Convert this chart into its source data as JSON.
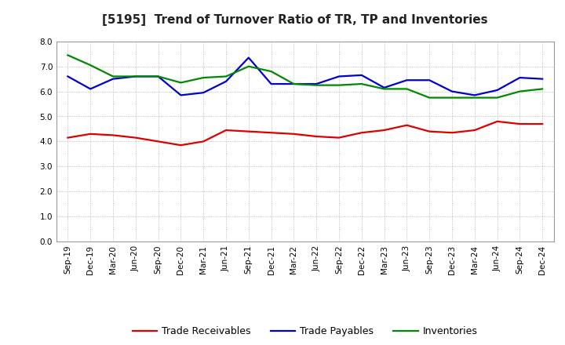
{
  "title": "[5195]  Trend of Turnover Ratio of TR, TP and Inventories",
  "x_labels": [
    "Sep-19",
    "Dec-19",
    "Mar-20",
    "Jun-20",
    "Sep-20",
    "Dec-20",
    "Mar-21",
    "Jun-21",
    "Sep-21",
    "Dec-21",
    "Mar-22",
    "Jun-22",
    "Sep-22",
    "Dec-22",
    "Mar-23",
    "Jun-23",
    "Sep-23",
    "Dec-23",
    "Mar-24",
    "Jun-24",
    "Sep-24",
    "Dec-24"
  ],
  "trade_receivables": [
    4.15,
    4.3,
    4.25,
    4.15,
    4.0,
    3.85,
    4.0,
    4.45,
    4.4,
    4.35,
    4.3,
    4.2,
    4.15,
    4.35,
    4.45,
    4.65,
    4.4,
    4.35,
    4.45,
    4.8,
    4.7,
    4.7
  ],
  "trade_payables": [
    6.6,
    6.1,
    6.5,
    6.6,
    6.6,
    5.85,
    5.95,
    6.4,
    7.35,
    6.3,
    6.3,
    6.3,
    6.6,
    6.65,
    6.15,
    6.45,
    6.45,
    6.0,
    5.85,
    6.05,
    6.55,
    6.5
  ],
  "inventories": [
    7.45,
    7.05,
    6.6,
    6.6,
    6.6,
    6.35,
    6.55,
    6.6,
    7.0,
    6.8,
    6.3,
    6.25,
    6.25,
    6.3,
    6.1,
    6.1,
    5.75,
    5.75,
    5.75,
    5.75,
    6.0,
    6.1
  ],
  "tr_color": "#dd0000",
  "tp_color": "#0000cc",
  "inv_color": "#008800",
  "ylim": [
    0.0,
    8.0
  ],
  "yticks": [
    0.0,
    1.0,
    2.0,
    3.0,
    4.0,
    5.0,
    6.0,
    7.0,
    8.0
  ],
  "legend_labels": [
    "Trade Receivables",
    "Trade Payables",
    "Inventories"
  ],
  "bg_color": "#ffffff",
  "plot_bg_color": "#ffffff",
  "grid_color": "#aaaaaa",
  "title_fontsize": 11,
  "tick_fontsize": 7.5,
  "legend_fontsize": 9,
  "linewidth": 1.6
}
